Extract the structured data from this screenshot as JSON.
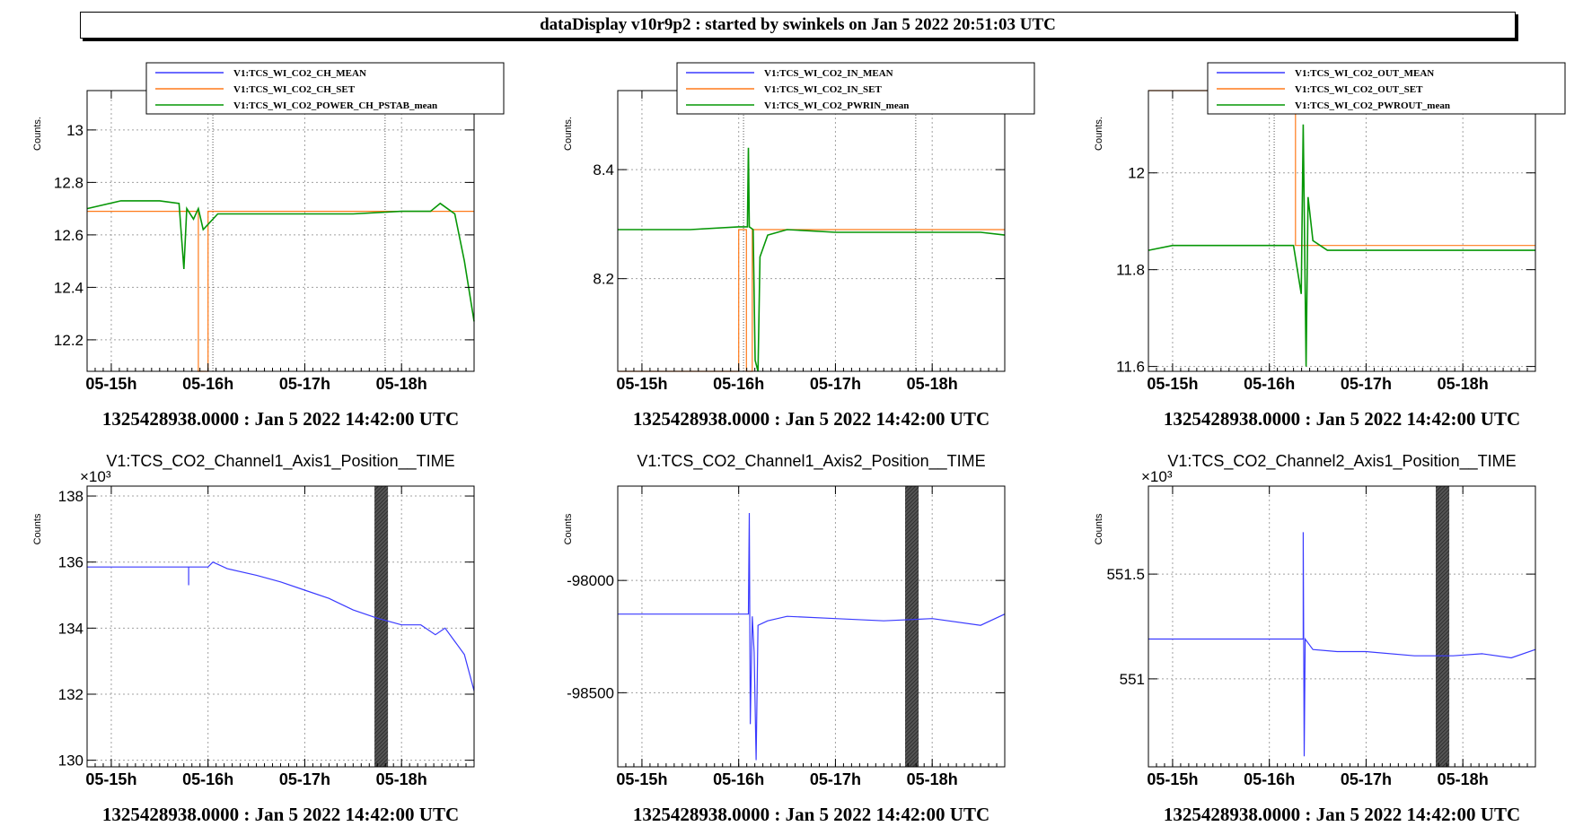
{
  "header": {
    "title": "dataDisplay v10r9p2 : started by swinkels on Jan  5 2022 20:51:03 UTC"
  },
  "colors": {
    "mean": "#3a3aff",
    "set": "#ff7a1a",
    "power": "#079707",
    "frame": "#000000",
    "grid": "#a0a0a0"
  },
  "chart_data": [
    {
      "type": "line",
      "title": "",
      "legend": [
        "V1:TCS_WI_CO2_CH_MEAN",
        "V1:TCS_WI_CO2_CH_SET",
        "V1:TCS_WI_CO2_POWER_CH_PSTAB_mean"
      ],
      "ylabel": "Counts.",
      "xlabel": "1325428938.0000 : Jan  5 2022 14:42:00 UTC",
      "xticks": [
        "05-15h",
        "05-16h",
        "05-17h",
        "05-18h"
      ],
      "yticks": [
        "12.2",
        "12.4",
        "12.6",
        "12.8",
        "13"
      ],
      "ylim": [
        12.08,
        13.15
      ],
      "multiplier": "",
      "series": [
        {
          "name": "V1:TCS_WI_CO2_POWER_CH_PSTAB_mean",
          "x": [
            14.75,
            15.1,
            15.5,
            15.7,
            15.75,
            15.78,
            15.85,
            15.9,
            15.95,
            16.1,
            16.5,
            17.0,
            17.5,
            18.0,
            18.3,
            18.4,
            18.55,
            18.65,
            18.75
          ],
          "y": [
            12.7,
            12.73,
            12.73,
            12.72,
            12.47,
            12.7,
            12.66,
            12.7,
            12.62,
            12.68,
            12.68,
            12.68,
            12.68,
            12.69,
            12.69,
            12.72,
            12.68,
            12.5,
            12.27
          ]
        },
        {
          "name": "V1:TCS_WI_CO2_CH_SET",
          "x": [
            14.75,
            15.9,
            15.9,
            16.0,
            16.0,
            18.75
          ],
          "y": [
            12.69,
            12.69,
            12.08,
            12.08,
            12.69,
            12.69
          ]
        }
      ]
    },
    {
      "type": "line",
      "title": "",
      "legend": [
        "V1:TCS_WI_CO2_IN_MEAN",
        "V1:TCS_WI_CO2_IN_SET",
        "V1:TCS_WI_CO2_PWRIN_mean"
      ],
      "ylabel": "Counts.",
      "xlabel": "1325428938.0000 : Jan  5 2022 14:42:00 UTC",
      "xticks": [
        "05-15h",
        "05-16h",
        "05-17h",
        "05-18h"
      ],
      "yticks": [
        "8.2",
        "8.4"
      ],
      "ylim": [
        8.03,
        8.545
      ],
      "multiplier": "",
      "series": [
        {
          "name": "V1:TCS_WI_CO2_PWRIN_mean",
          "x": [
            14.75,
            15.5,
            16.0,
            16.09,
            16.1,
            16.11,
            16.15,
            16.17,
            16.2,
            16.22,
            16.3,
            16.5,
            17.0,
            17.5,
            18.0,
            18.5,
            18.75
          ],
          "y": [
            8.29,
            8.29,
            8.295,
            8.295,
            8.44,
            8.295,
            8.29,
            8.05,
            8.03,
            8.24,
            8.28,
            8.29,
            8.285,
            8.285,
            8.285,
            8.285,
            8.28
          ]
        },
        {
          "name": "V1:TCS_WI_CO2_IN_SET",
          "x": [
            14.75,
            16.0,
            16.0,
            16.08,
            16.08,
            16.14,
            16.14,
            18.75
          ],
          "y": [
            8.03,
            8.03,
            8.29,
            8.29,
            8.03,
            8.03,
            8.29,
            8.29
          ]
        }
      ]
    },
    {
      "type": "line",
      "title": "",
      "legend": [
        "V1:TCS_WI_CO2_OUT_MEAN",
        "V1:TCS_WI_CO2_OUT_SET",
        "V1:TCS_WI_CO2_PWROUT_mean"
      ],
      "ylabel": "Counts.",
      "xlabel": "1325428938.0000 : Jan  5 2022 14:42:00 UTC",
      "xticks": [
        "05-15h",
        "05-16h",
        "05-17h",
        "05-18h"
      ],
      "yticks": [
        "11.6",
        "11.8",
        "12"
      ],
      "ylim": [
        11.59,
        12.17
      ],
      "multiplier": "",
      "series": [
        {
          "name": "V1:TCS_WI_CO2_PWROUT_mean",
          "x": [
            14.75,
            15.0,
            15.5,
            16.0,
            16.25,
            16.33,
            16.35,
            16.38,
            16.4,
            16.45,
            16.6,
            17.0,
            17.5,
            18.0,
            18.5,
            18.75
          ],
          "y": [
            11.84,
            11.85,
            11.85,
            11.85,
            11.85,
            11.75,
            12.1,
            11.6,
            11.95,
            11.86,
            11.84,
            11.84,
            11.84,
            11.84,
            11.84,
            11.84
          ]
        },
        {
          "name": "V1:TCS_WI_CO2_OUT_SET",
          "x": [
            14.75,
            16.27,
            16.27,
            16.33,
            16.33,
            18.75
          ],
          "y": [
            12.17,
            12.17,
            11.85,
            11.85,
            11.85,
            11.85
          ]
        }
      ]
    },
    {
      "type": "line",
      "title": "V1:TCS_CO2_Channel1_Axis1_Position__TIME",
      "legend": [],
      "ylabel": "Counts",
      "xlabel": "1325428938.0000 : Jan  5 2022 14:42:00 UTC",
      "xticks": [
        "05-15h",
        "05-16h",
        "05-17h",
        "05-18h"
      ],
      "yticks": [
        "130",
        "132",
        "134",
        "136",
        "138"
      ],
      "ylim": [
        129.8,
        138.3
      ],
      "multiplier": "×10³",
      "shade": [
        17.72,
        17.86
      ],
      "series": [
        {
          "name": "V1:TCS_CO2_Channel1_Axis1_Position__TIME",
          "x": [
            14.75,
            15.8,
            15.8,
            15.8,
            16.0,
            16.05,
            16.2,
            16.5,
            16.75,
            17.0,
            17.25,
            17.5,
            17.75,
            18.0,
            18.2,
            18.35,
            18.45,
            18.55,
            18.65,
            18.75
          ],
          "y": [
            135.85,
            135.85,
            135.3,
            135.85,
            135.85,
            136.0,
            135.8,
            135.6,
            135.4,
            135.15,
            134.9,
            134.55,
            134.3,
            134.1,
            134.1,
            133.8,
            134.0,
            133.6,
            133.2,
            132.1
          ]
        }
      ]
    },
    {
      "type": "line",
      "title": "V1:TCS_CO2_Channel1_Axis2_Position__TIME",
      "legend": [],
      "ylabel": "Counts",
      "xlabel": "1325428938.0000 : Jan  5 2022 14:42:00 UTC",
      "xticks": [
        "05-15h",
        "05-16h",
        "05-17h",
        "05-18h"
      ],
      "yticks": [
        "-98500",
        "-98000"
      ],
      "ylim": [
        -98830,
        -97580
      ],
      "multiplier": "",
      "shade": [
        17.72,
        17.86
      ],
      "series": [
        {
          "name": "V1:TCS_CO2_Channel1_Axis2_Position__TIME",
          "x": [
            14.75,
            16.1,
            16.11,
            16.12,
            16.14,
            16.16,
            16.18,
            16.2,
            16.25,
            16.3,
            16.5,
            17.0,
            17.5,
            18.0,
            18.5,
            18.75
          ],
          "y": [
            -98150,
            -98150,
            -97700,
            -98640,
            -98160,
            -98320,
            -98800,
            -98200,
            -98190,
            -98180,
            -98160,
            -98170,
            -98180,
            -98170,
            -98200,
            -98150
          ]
        }
      ]
    },
    {
      "type": "line",
      "title": "V1:TCS_CO2_Channel2_Axis1_Position__TIME",
      "legend": [],
      "ylabel": "Counts",
      "xlabel": "1325428938.0000 : Jan  5 2022 14:42:00 UTC",
      "xticks": [
        "05-15h",
        "05-16h",
        "05-17h",
        "05-18h"
      ],
      "yticks": [
        "551",
        "551.5"
      ],
      "ylim": [
        550.58,
        551.92
      ],
      "multiplier": "×10³",
      "shade": [
        17.72,
        17.86
      ],
      "series": [
        {
          "name": "V1:TCS_CO2_Channel2_Axis1_Position__TIME",
          "x": [
            14.75,
            16.35,
            16.35,
            16.36,
            16.37,
            16.45,
            16.7,
            17.0,
            17.5,
            17.9,
            18.2,
            18.5,
            18.75
          ],
          "y": [
            551.19,
            551.19,
            551.7,
            550.63,
            551.19,
            551.14,
            551.13,
            551.13,
            551.11,
            551.11,
            551.12,
            551.1,
            551.14
          ]
        }
      ]
    }
  ]
}
